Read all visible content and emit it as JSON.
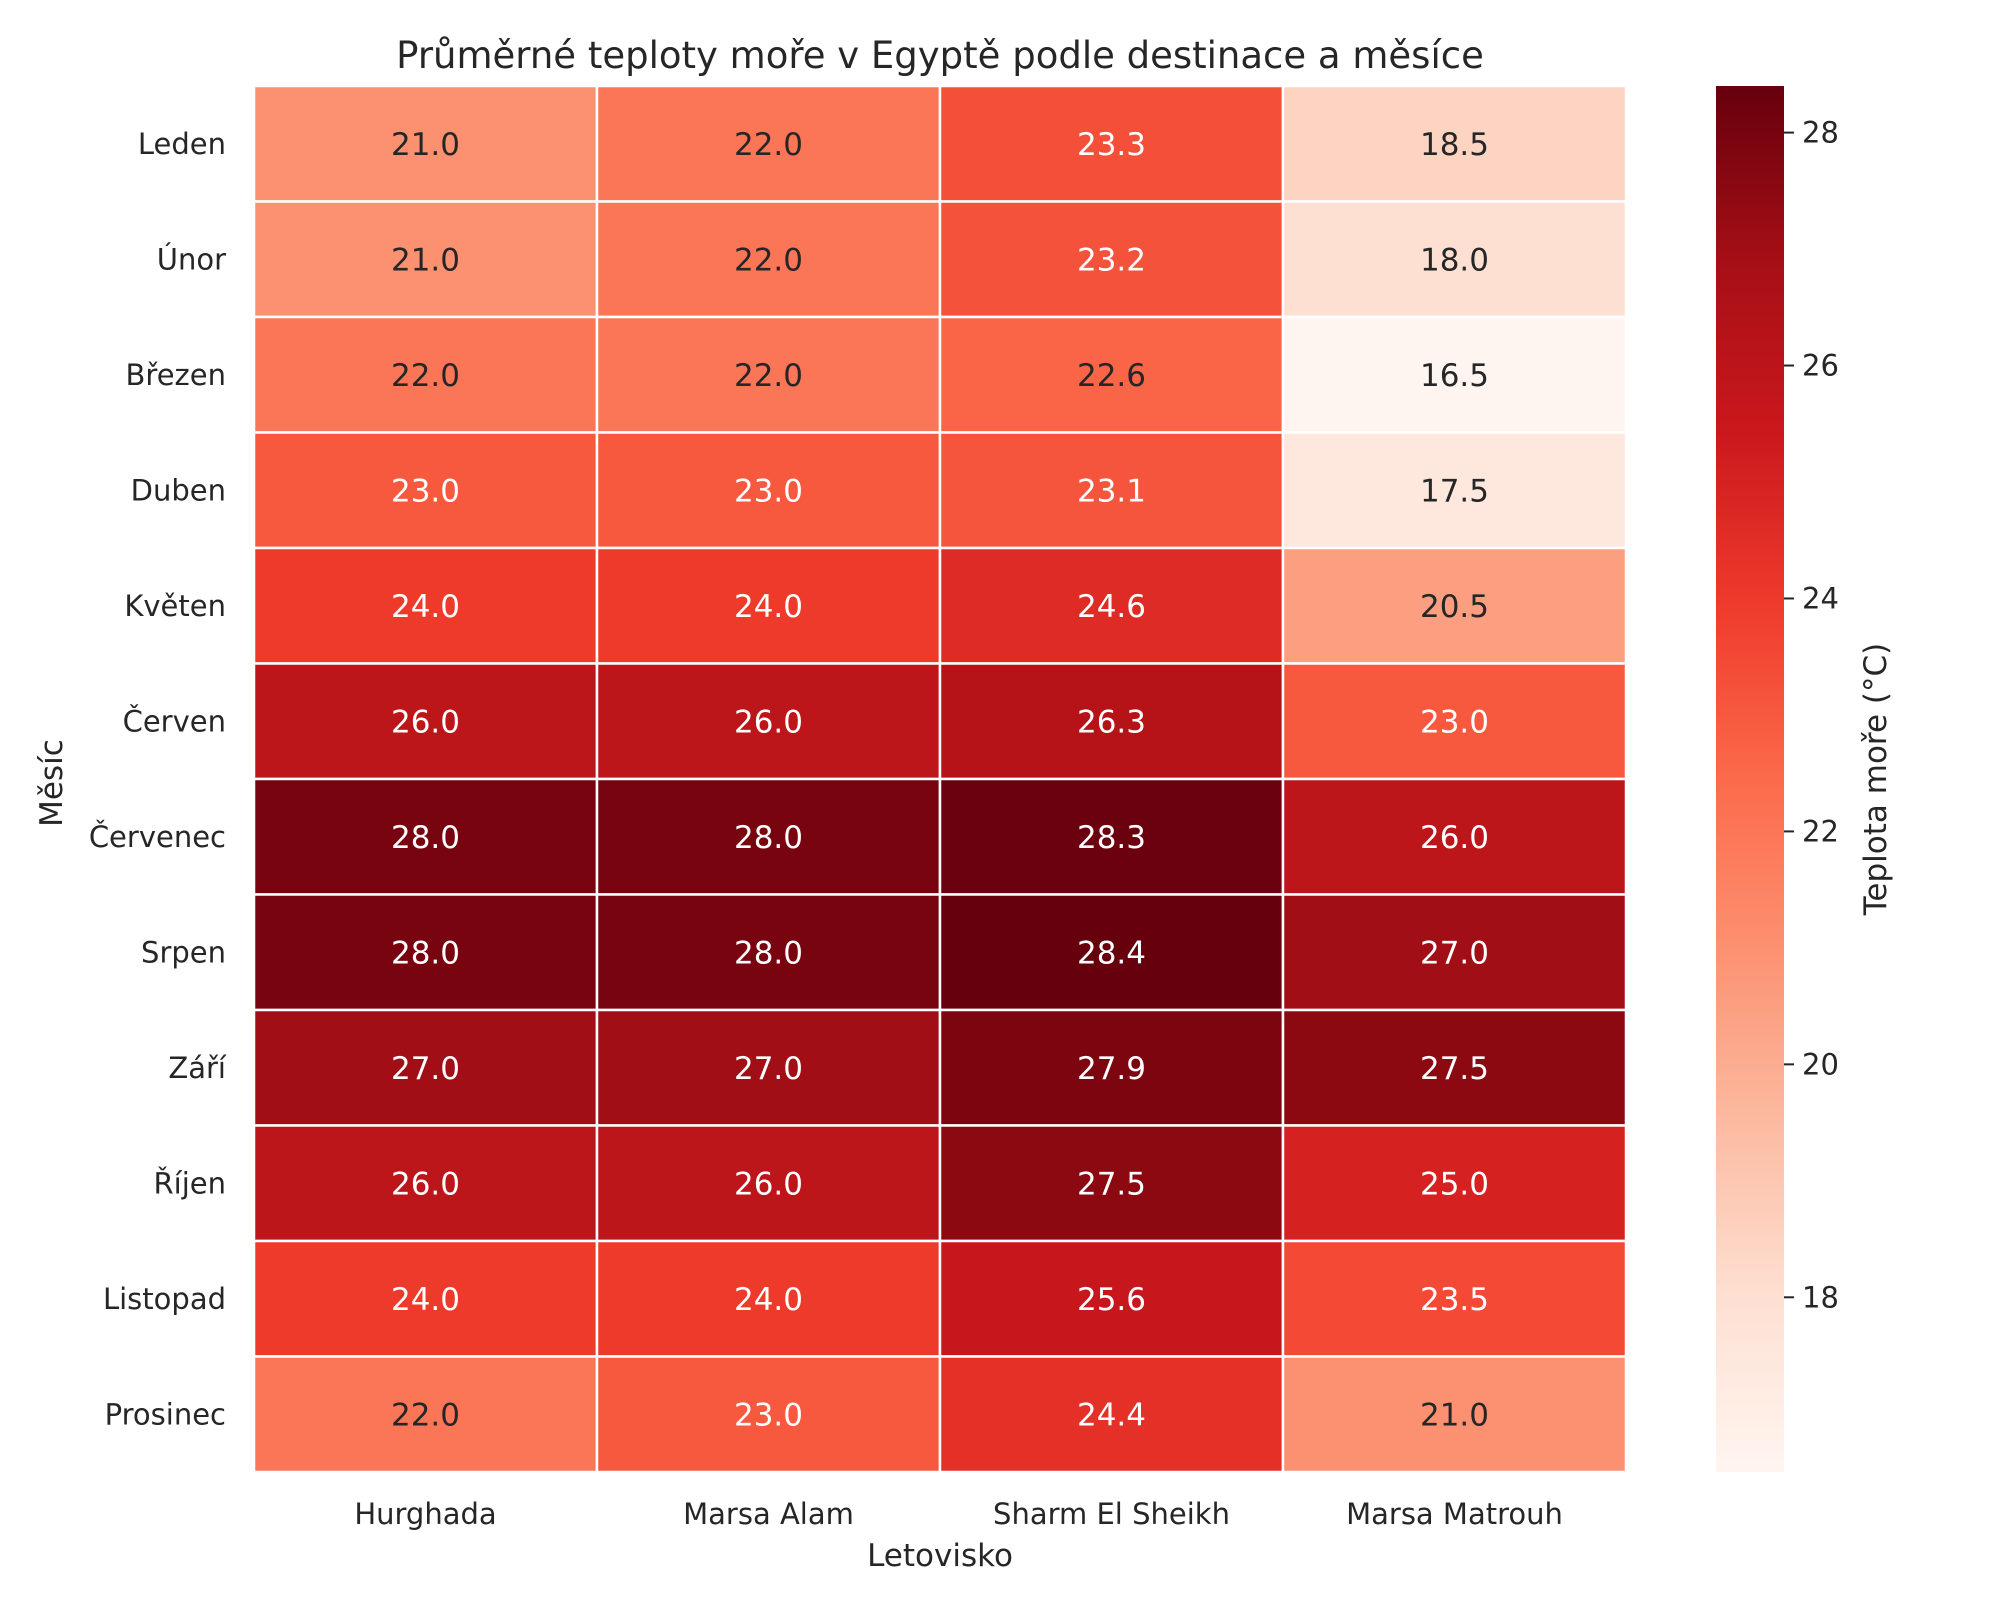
{
  "chart_data": {
    "type": "heatmap",
    "title": "Průměrné teploty moře v Egyptě podle destinace a měsíce",
    "xlabel": "Letovisko",
    "ylabel": "Měsíc",
    "x_categories": [
      "Hurghada",
      "Marsa Alam",
      "Sharm El Sheikh",
      "Marsa Matrouh"
    ],
    "y_categories": [
      "Leden",
      "Únor",
      "Březen",
      "Duben",
      "Květen",
      "Červen",
      "Červenec",
      "Srpen",
      "Září",
      "Říjen",
      "Listopad",
      "Prosinec"
    ],
    "values": [
      [
        21.0,
        22.0,
        23.3,
        18.5
      ],
      [
        21.0,
        22.0,
        23.2,
        18.0
      ],
      [
        22.0,
        22.0,
        22.6,
        16.5
      ],
      [
        23.0,
        23.0,
        23.1,
        17.5
      ],
      [
        24.0,
        24.0,
        24.6,
        20.5
      ],
      [
        26.0,
        26.0,
        26.3,
        23.0
      ],
      [
        28.0,
        28.0,
        28.3,
        26.0
      ],
      [
        28.0,
        28.0,
        28.4,
        27.0
      ],
      [
        27.0,
        27.0,
        27.9,
        27.5
      ],
      [
        26.0,
        26.0,
        27.5,
        25.0
      ],
      [
        24.0,
        24.0,
        25.6,
        23.5
      ],
      [
        22.0,
        23.0,
        24.4,
        21.0
      ]
    ],
    "value_labels": [
      [
        "21.0",
        "22.0",
        "23.3",
        "18.5"
      ],
      [
        "21.0",
        "22.0",
        "23.2",
        "18.0"
      ],
      [
        "22.0",
        "22.0",
        "22.6",
        "16.5"
      ],
      [
        "23.0",
        "23.0",
        "23.1",
        "17.5"
      ],
      [
        "24.0",
        "24.0",
        "24.6",
        "20.5"
      ],
      [
        "26.0",
        "26.0",
        "26.3",
        "23.0"
      ],
      [
        "28.0",
        "28.0",
        "28.3",
        "26.0"
      ],
      [
        "28.0",
        "28.0",
        "28.4",
        "27.0"
      ],
      [
        "27.0",
        "27.0",
        "27.9",
        "27.5"
      ],
      [
        "26.0",
        "26.0",
        "27.5",
        "25.0"
      ],
      [
        "24.0",
        "24.0",
        "25.6",
        "23.5"
      ],
      [
        "22.0",
        "23.0",
        "24.4",
        "21.0"
      ]
    ],
    "colorbar": {
      "label": "Teplota moře (°C)",
      "range": [
        16.5,
        28.4
      ],
      "ticks": [
        18,
        20,
        22,
        24,
        26,
        28
      ],
      "tick_labels": [
        "18",
        "20",
        "22",
        "24",
        "26",
        "28"
      ]
    },
    "colormap": "Reds",
    "colormap_stops": [
      "#fff5f0",
      "#fee0d2",
      "#fcbba1",
      "#fc9272",
      "#fb6a4a",
      "#ef3b2c",
      "#cb181d",
      "#a50f15",
      "#67000d"
    ],
    "text_dark": "#262626",
    "text_light": "#ffffff"
  }
}
